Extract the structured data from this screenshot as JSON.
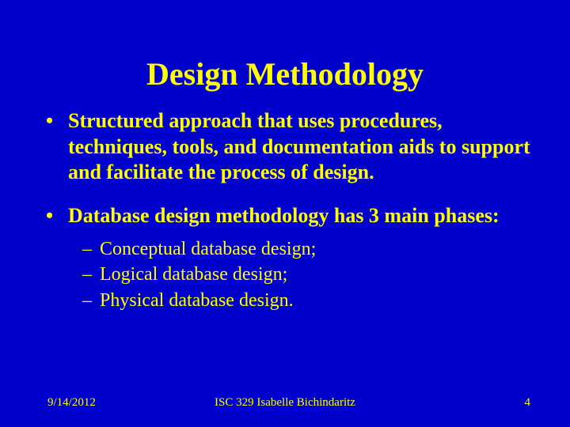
{
  "background_color": "#0000cc",
  "text_color": "#ffff00",
  "title": {
    "text": "Design Methodology",
    "font_size_pt": 40,
    "font_weight": "bold",
    "font_family": "Times New Roman"
  },
  "bullets": [
    {
      "text": "Structured approach that uses procedures, techniques, tools, and documentation aids to support and facilitate the process of design.",
      "font_size_pt": 26,
      "font_weight": "bold"
    },
    {
      "text": "Database design methodology has 3 main phases:",
      "font_size_pt": 26,
      "font_weight": "bold",
      "sub": [
        {
          "text": "Conceptual database design;",
          "font_size_pt": 24
        },
        {
          "text": "Logical database design;",
          "font_size_pt": 24
        },
        {
          "text": "Physical database design.",
          "font_size_pt": 24
        }
      ]
    }
  ],
  "footer": {
    "date": "9/14/2012",
    "center": "ISC 329   Isabelle Bichindaritz",
    "page": "4",
    "font_size_pt": 15
  }
}
